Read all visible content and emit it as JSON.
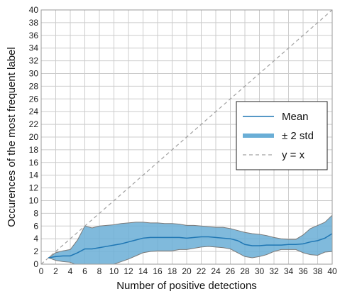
{
  "chart_data": {
    "type": "line",
    "title": "",
    "xlabel": "Number of positive detections",
    "ylabel": "Occurences of the most frequent label",
    "xlim": [
      0,
      40
    ],
    "ylim": [
      0,
      40
    ],
    "xticks": [
      0,
      2,
      4,
      6,
      8,
      10,
      12,
      14,
      16,
      18,
      20,
      22,
      24,
      26,
      28,
      30,
      32,
      34,
      36,
      38,
      40
    ],
    "yticks": [
      0,
      2,
      4,
      6,
      8,
      10,
      12,
      14,
      16,
      18,
      20,
      22,
      24,
      26,
      28,
      30,
      32,
      34,
      36,
      38,
      40
    ],
    "grid": true,
    "legend_position": "center-right",
    "legend": {
      "mean": "Mean",
      "band": "± 2 std",
      "identity": "y = x"
    },
    "colors": {
      "mean": "#1f77b4",
      "band_fill": "#6aaed6",
      "band_edge": "#7a7a7a",
      "identity": "#a0a0a0",
      "grid": "#cccccc"
    },
    "x": [
      1,
      2,
      3,
      4,
      5,
      6,
      7,
      8,
      9,
      10,
      11,
      12,
      13,
      14,
      15,
      16,
      17,
      18,
      19,
      20,
      21,
      22,
      23,
      24,
      25,
      26,
      27,
      28,
      29,
      30,
      31,
      32,
      33,
      34,
      35,
      36,
      37,
      38,
      39,
      40
    ],
    "series": [
      {
        "name": "Mean",
        "values": [
          1.0,
          1.2,
          1.3,
          1.3,
          1.8,
          2.4,
          2.4,
          2.6,
          2.8,
          3.0,
          3.2,
          3.5,
          3.8,
          4.1,
          4.2,
          4.2,
          4.2,
          4.2,
          4.2,
          4.1,
          4.2,
          4.3,
          4.3,
          4.2,
          4.1,
          4.0,
          3.7,
          3.1,
          2.9,
          2.9,
          3.0,
          3.0,
          3.0,
          3.1,
          3.1,
          3.2,
          3.5,
          3.7,
          4.1,
          4.8
        ]
      },
      {
        "name": "± 2 std",
        "lower": [
          1.0,
          0.6,
          0.4,
          0.3,
          -0.2,
          -1.2,
          -1.0,
          -0.8,
          -0.3,
          0.0,
          0.4,
          0.8,
          1.3,
          1.8,
          2.0,
          2.1,
          2.1,
          2.1,
          2.3,
          2.3,
          2.5,
          2.7,
          2.8,
          2.7,
          2.6,
          2.4,
          1.8,
          1.2,
          1.0,
          1.2,
          1.5,
          2.0,
          2.3,
          2.3,
          2.3,
          1.8,
          1.5,
          1.4,
          1.9,
          2.0
        ],
        "upper": [
          1.0,
          1.8,
          2.1,
          2.3,
          3.8,
          6.0,
          5.7,
          6.0,
          6.1,
          6.2,
          6.4,
          6.5,
          6.6,
          6.6,
          6.5,
          6.5,
          6.4,
          6.4,
          6.3,
          6.1,
          6.1,
          6.0,
          5.9,
          5.8,
          5.8,
          5.6,
          5.3,
          5.0,
          4.8,
          4.7,
          4.5,
          4.2,
          4.0,
          3.9,
          3.9,
          4.6,
          5.6,
          6.1,
          6.6,
          7.7
        ]
      },
      {
        "name": "y = x",
        "x": [
          0,
          40
        ],
        "values": [
          0,
          40
        ]
      }
    ]
  }
}
